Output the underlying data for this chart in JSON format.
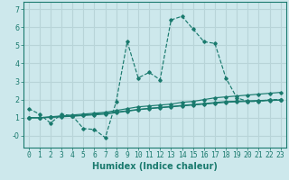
{
  "xlabel": "Humidex (Indice chaleur)",
  "background_color": "#cde8ec",
  "grid_color": "#b8d4d8",
  "line_color": "#1a7a6e",
  "xlim": [
    -0.5,
    23.5
  ],
  "ylim": [
    -0.65,
    7.4
  ],
  "xticks": [
    0,
    1,
    2,
    3,
    4,
    5,
    6,
    7,
    8,
    9,
    10,
    11,
    12,
    13,
    14,
    15,
    16,
    17,
    18,
    19,
    20,
    21,
    22,
    23
  ],
  "yticks": [
    0,
    1,
    2,
    3,
    4,
    5,
    6,
    7
  ],
  "ytick_labels": [
    "-0",
    "1",
    "2",
    "3",
    "4",
    "5",
    "6",
    "7"
  ],
  "series": [
    {
      "x": [
        0,
        1,
        2,
        3,
        4,
        5,
        6,
        7,
        8,
        9,
        10,
        11,
        12,
        13,
        14,
        15,
        16,
        17,
        18,
        19,
        20,
        21,
        22,
        23
      ],
      "y": [
        1.5,
        1.2,
        0.7,
        1.2,
        1.1,
        0.4,
        0.35,
        -0.1,
        1.9,
        5.2,
        3.2,
        3.5,
        3.1,
        6.4,
        6.6,
        5.9,
        5.2,
        5.1,
        3.2,
        2.1,
        1.9,
        1.9,
        2.0,
        2.0
      ],
      "linestyle": "--"
    },
    {
      "x": [
        0,
        1,
        2,
        3,
        4,
        5,
        6,
        7,
        8,
        9,
        10,
        11,
        12,
        13,
        14,
        15,
        16,
        17,
        18,
        19,
        20,
        21,
        22,
        23
      ],
      "y": [
        1.0,
        1.0,
        1.05,
        1.1,
        1.15,
        1.2,
        1.25,
        1.3,
        1.4,
        1.5,
        1.6,
        1.65,
        1.7,
        1.75,
        1.85,
        1.9,
        2.0,
        2.1,
        2.15,
        2.2,
        2.25,
        2.3,
        2.35,
        2.4
      ],
      "linestyle": "-"
    },
    {
      "x": [
        0,
        1,
        2,
        3,
        4,
        5,
        6,
        7,
        8,
        9,
        10,
        11,
        12,
        13,
        14,
        15,
        16,
        17,
        18,
        19,
        20,
        21,
        22,
        23
      ],
      "y": [
        1.0,
        1.0,
        1.02,
        1.05,
        1.08,
        1.12,
        1.16,
        1.2,
        1.28,
        1.36,
        1.44,
        1.5,
        1.55,
        1.6,
        1.65,
        1.7,
        1.75,
        1.8,
        1.85,
        1.88,
        1.9,
        1.92,
        1.95,
        1.97
      ],
      "linestyle": "-"
    },
    {
      "x": [
        0,
        1,
        2,
        3,
        4,
        5,
        6,
        7,
        8,
        9,
        10,
        11,
        12,
        13,
        14,
        15,
        16,
        17,
        18,
        19,
        20,
        21,
        22,
        23
      ],
      "y": [
        1.0,
        1.0,
        1.03,
        1.07,
        1.1,
        1.15,
        1.2,
        1.25,
        1.32,
        1.38,
        1.46,
        1.52,
        1.57,
        1.62,
        1.68,
        1.73,
        1.78,
        1.84,
        1.89,
        1.91,
        1.93,
        1.95,
        1.97,
        1.98
      ],
      "linestyle": "-"
    }
  ],
  "font_size": 7.0,
  "tick_font_size": 5.8
}
